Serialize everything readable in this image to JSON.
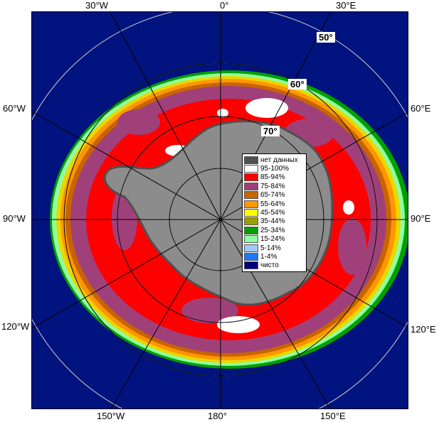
{
  "map": {
    "longitude_labels_top": [
      "30°W",
      "0°",
      "30°E"
    ],
    "longitude_labels_bottom": [
      "150°W",
      "180°",
      "150°E"
    ],
    "longitude_labels_left": [
      "60°W",
      "90°W",
      "120°W"
    ],
    "longitude_labels_right": [
      "60°E",
      "90°E",
      "120°E"
    ],
    "latitude_labels": [
      "50°",
      "60°",
      "70°"
    ]
  },
  "legend": {
    "items": [
      {
        "label": "нет данных",
        "color": "#505050"
      },
      {
        "label": "95-100%",
        "color": "#ffffff"
      },
      {
        "label": "85-94%",
        "color": "#ff0000"
      },
      {
        "label": "75-84%",
        "color": "#a0407a"
      },
      {
        "label": "65-74%",
        "color": "#c86400"
      },
      {
        "label": "55-64%",
        "color": "#ff9600"
      },
      {
        "label": "45-54%",
        "color": "#ffff00"
      },
      {
        "label": "35-44%",
        "color": "#9aa000"
      },
      {
        "label": "25-34%",
        "color": "#00a000"
      },
      {
        "label": "15-24%",
        "color": "#90ffa0"
      },
      {
        "label": "5-14%",
        "color": "#a0c8ff"
      },
      {
        "label": "1-4%",
        "color": "#1e78ff"
      },
      {
        "label": "чисто",
        "color": "#00007a"
      }
    ]
  },
  "colors": {
    "ocean": "#00137e",
    "land": "#8c8c8c",
    "grid": "#cfcfcf"
  }
}
